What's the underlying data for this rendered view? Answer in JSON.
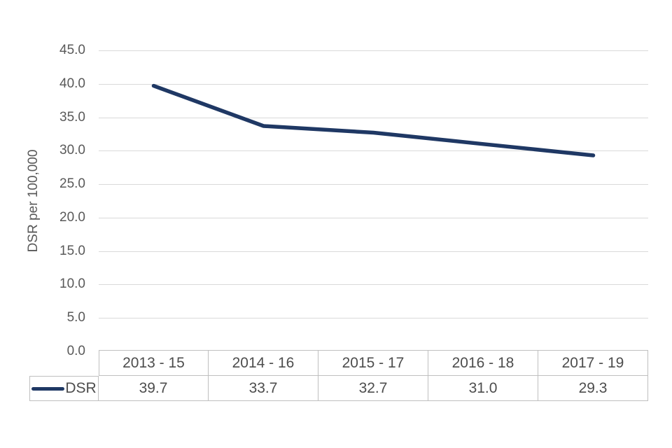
{
  "chart_data": {
    "type": "line",
    "title": "",
    "ylabel": "DSR per 100,000",
    "series_name": "DSR",
    "categories": [
      "2013 - 15",
      "2014 - 16",
      "2015 - 17",
      "2016 - 18",
      "2017 - 19"
    ],
    "values": [
      39.7,
      33.7,
      32.7,
      31.0,
      29.3
    ],
    "value_labels": [
      "39.7",
      "33.7",
      "32.7",
      "31.0",
      "29.3"
    ],
    "ylim": [
      0,
      45
    ],
    "ytick_step": 5,
    "yticks": [
      "45.0",
      "40.0",
      "35.0",
      "30.0",
      "25.0",
      "20.0",
      "15.0",
      "10.0",
      "5.0",
      "0.0"
    ],
    "grid": true,
    "legend_position": "table-left",
    "line_color": "#1f3864",
    "gridline_color": "#d9d9d9",
    "text_color": "#595959",
    "table_border_color": "#bfbfbf"
  }
}
